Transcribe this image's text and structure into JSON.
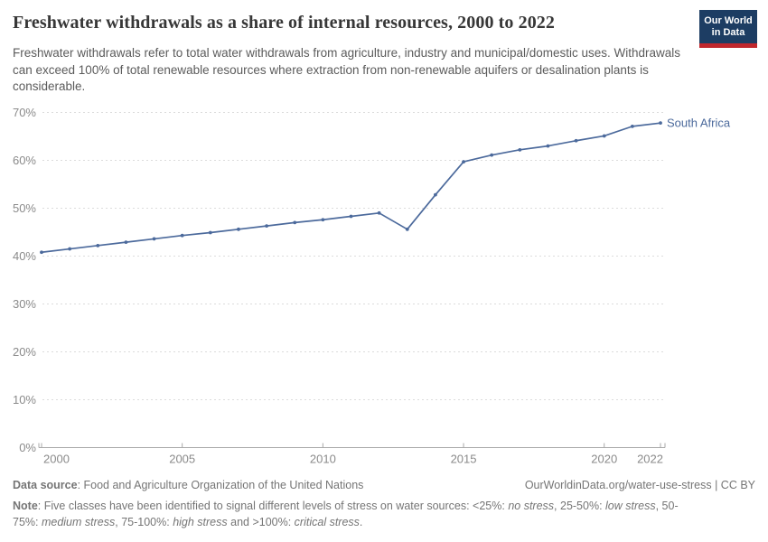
{
  "header": {
    "title": "Freshwater withdrawals as a share of internal resources, 2000 to 2022",
    "subtitle": "Freshwater withdrawals refer to total water withdrawals from agriculture, industry and municipal/domestic uses. Withdrawals can exceed 100% of total renewable resources where extraction from non-renewable aquifers or desalination plants is considerable.",
    "logo": {
      "line1": "Our World",
      "line2": "in Data",
      "bg": "#1d3d63",
      "accent": "#c0272d"
    }
  },
  "chart_data": {
    "type": "line",
    "title": "Freshwater withdrawals as a share of internal resources, 2000 to 2022",
    "x": [
      2000,
      2001,
      2002,
      2003,
      2004,
      2005,
      2006,
      2007,
      2008,
      2009,
      2010,
      2011,
      2012,
      2013,
      2014,
      2015,
      2016,
      2017,
      2018,
      2019,
      2020,
      2021,
      2022
    ],
    "series": [
      {
        "name": "South Africa",
        "color": "#4c6a9c",
        "values": [
          40.8,
          41.5,
          42.2,
          42.9,
          43.6,
          44.3,
          44.9,
          45.6,
          46.3,
          47.0,
          47.6,
          48.3,
          49.0,
          45.6,
          52.8,
          59.7,
          61.1,
          62.2,
          63.0,
          64.1,
          65.1,
          67.1,
          67.8
        ]
      }
    ],
    "xlabel": "",
    "ylabel": "",
    "xlim": [
      2000,
      2022
    ],
    "ylim": [
      0,
      70
    ],
    "x_ticks": [
      2000,
      2005,
      2010,
      2015,
      2020,
      2022
    ],
    "y_ticks": [
      0,
      10,
      20,
      30,
      40,
      50,
      60,
      70
    ],
    "y_tick_suffix": "%",
    "grid": "horizontal-dashed",
    "legend_position": "end-of-line-label",
    "grid_color": "#dcdcdc",
    "axis_color": "#a8a8a8",
    "tick_label_color": "#8a8a8a"
  },
  "footer": {
    "datasource_label": "Data source",
    "datasource_text": ": Food and Agriculture Organization of the United Nations",
    "link": "OurWorldinData.org/water-use-stress | CC BY",
    "note_parts": [
      {
        "text": "Note",
        "style": "bold"
      },
      {
        "text": ": Five classes have been identified to signal different levels of stress on water sources: <25%: ",
        "style": ""
      },
      {
        "text": "no stress",
        "style": "italic"
      },
      {
        "text": ", 25-50%: ",
        "style": ""
      },
      {
        "text": "low stress",
        "style": "italic"
      },
      {
        "text": ", 50-75%: ",
        "style": ""
      },
      {
        "text": "medium stress",
        "style": "italic"
      },
      {
        "text": ", 75-100%: ",
        "style": ""
      },
      {
        "text": "high stress",
        "style": "italic"
      },
      {
        "text": " and >100%: ",
        "style": ""
      },
      {
        "text": "critical stress",
        "style": "italic"
      },
      {
        "text": ".",
        "style": ""
      }
    ]
  }
}
